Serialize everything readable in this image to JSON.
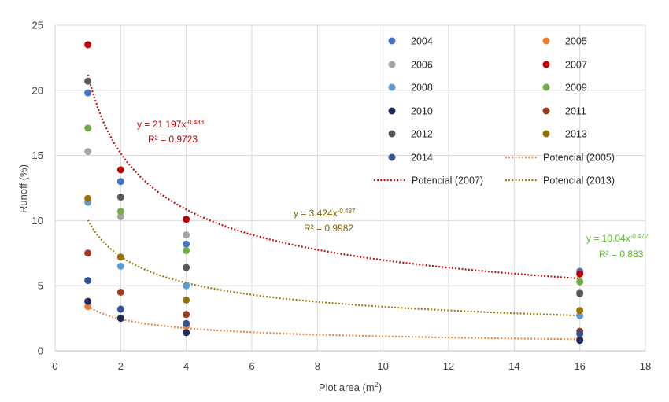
{
  "chart_data": {
    "type": "scatter",
    "xlabel": "Plot area (m²)",
    "ylabel": "Runoff (%)",
    "xlim": [
      0,
      18
    ],
    "ylim": [
      0,
      25
    ],
    "x_ticks": [
      "0",
      "2",
      "4",
      "6",
      "8",
      "10",
      "12",
      "14",
      "16",
      "18"
    ],
    "y_ticks": [
      "0",
      "5",
      "10",
      "15",
      "20",
      "25"
    ],
    "grid": true,
    "legend_position": "top-right inside",
    "series": [
      {
        "name": "2004",
        "color": "#4472c4",
        "x": [
          1,
          2,
          4,
          16
        ],
        "y": [
          19.8,
          13.0,
          8.2,
          6.1
        ]
      },
      {
        "name": "2005",
        "color": "#ed7d31",
        "x": [
          1,
          2,
          4,
          16
        ],
        "y": [
          3.4,
          2.5,
          1.9,
          0.9
        ]
      },
      {
        "name": "2006",
        "color": "#a5a5a5",
        "x": [
          1,
          2,
          4,
          16
        ],
        "y": [
          15.3,
          10.3,
          8.9,
          4.5
        ]
      },
      {
        "name": "2007",
        "color": "#c00000",
        "x": [
          1,
          2,
          4,
          16
        ],
        "y": [
          23.5,
          13.9,
          10.1,
          5.9
        ]
      },
      {
        "name": "2008",
        "color": "#5b9bd5",
        "x": [
          1,
          2,
          4,
          16
        ],
        "y": [
          11.4,
          6.5,
          5.0,
          2.7
        ]
      },
      {
        "name": "2009",
        "color": "#70ad47",
        "x": [
          1,
          2,
          4,
          16
        ],
        "y": [
          17.1,
          10.7,
          7.7,
          5.3
        ]
      },
      {
        "name": "2010",
        "color": "#1f2d5c",
        "x": [
          1,
          2,
          4,
          16
        ],
        "y": [
          3.8,
          2.5,
          1.4,
          0.8
        ]
      },
      {
        "name": "2011",
        "color": "#9e3b1f",
        "x": [
          1,
          2,
          4,
          16
        ],
        "y": [
          7.5,
          4.5,
          2.8,
          1.5
        ]
      },
      {
        "name": "2012",
        "color": "#595959",
        "x": [
          1,
          2,
          4,
          16
        ],
        "y": [
          20.7,
          11.8,
          6.4,
          4.4
        ]
      },
      {
        "name": "2013",
        "color": "#997300",
        "x": [
          1,
          2,
          4,
          16
        ],
        "y": [
          11.7,
          7.2,
          3.9,
          3.1
        ]
      },
      {
        "name": "2014",
        "color": "#2f5597",
        "x": [
          1,
          2,
          4,
          16
        ],
        "y": [
          5.4,
          3.2,
          2.1,
          1.3
        ]
      }
    ],
    "trendlines": [
      {
        "name": "Potencial (2005)",
        "color": "#ed7d31",
        "a": 3.424,
        "b": -0.487
      },
      {
        "name": "Potencial (2007)",
        "color": "#c00000",
        "a": 21.197,
        "b": -0.483
      },
      {
        "name": "Potencial (2013)",
        "color": "#997300",
        "a": 10.04,
        "b": -0.472
      }
    ],
    "annotations": [
      {
        "color": "#c00000",
        "eq_base": "y = 21.197x",
        "eq_exp": "-0.483",
        "r2": "R² = 0.9723"
      },
      {
        "color": "#7f6000",
        "eq_base": "y = 3.424x",
        "eq_exp": "-0.487",
        "r2": "R² = 0.9982"
      },
      {
        "color": "#5bb531",
        "eq_base": "y = 10.04x",
        "eq_exp": "-0.472",
        "r2": "R² = 0.883"
      }
    ]
  }
}
